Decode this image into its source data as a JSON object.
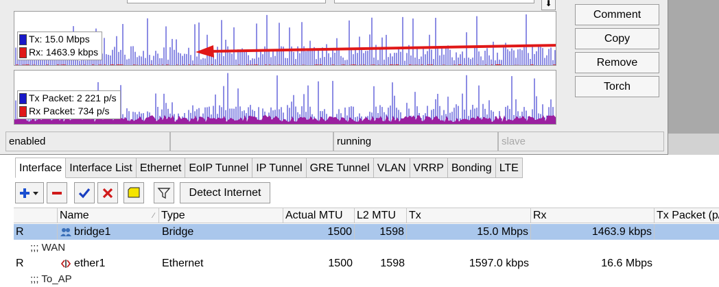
{
  "graphs": {
    "traffic": {
      "tx_label": "Tx:",
      "tx_value": "15.0 Mbps",
      "rx_label": "Rx:",
      "rx_value": "1463.9 kbps",
      "tx_color": "#1818c8",
      "rx_color": "#e01818"
    },
    "packets": {
      "tx_label": "Tx Packet:",
      "tx_value": "2 221 p/s",
      "rx_label": "Rx Packet:",
      "rx_value": "734 p/s",
      "tx_color": "#1818c8",
      "rx_color": "#9b1fa0"
    },
    "annotation_arrow_color": "#e01818"
  },
  "side_buttons": {
    "comment": "Comment",
    "copy": "Copy",
    "remove": "Remove",
    "torch": "Torch"
  },
  "status_bar": {
    "state": "enabled",
    "empty": "",
    "running": "running",
    "slave": "slave"
  },
  "tabs": [
    "Interface",
    "Interface List",
    "Ethernet",
    "EoIP Tunnel",
    "IP Tunnel",
    "GRE Tunnel",
    "VLAN",
    "VRRP",
    "Bonding",
    "LTE"
  ],
  "toolbar": {
    "detect_internet": "Detect Internet",
    "add_icon": "plus-icon",
    "remove_icon": "minus-icon",
    "enable_icon": "check-icon",
    "disable_icon": "x-icon",
    "comment_icon": "note-icon",
    "filter_icon": "filter-icon"
  },
  "table": {
    "columns": [
      "",
      "Name",
      "Type",
      "Actual MTU",
      "L2 MTU",
      "Tx",
      "Rx",
      "Tx Packet (p/"
    ],
    "rows": [
      {
        "flag": "R",
        "name": "bridge1",
        "type": "Bridge",
        "actual_mtu": "1500",
        "l2_mtu": "1598",
        "tx": "15.0 Mbps",
        "rx": "1463.9 kbps",
        "selected": true,
        "icon": "bridge-icon"
      },
      {
        "comment": ";;; WAN"
      },
      {
        "flag": "R",
        "name": "ether1",
        "type": "Ethernet",
        "actual_mtu": "1500",
        "l2_mtu": "1598",
        "tx": "1597.0 kbps",
        "rx": "16.6 Mbps",
        "selected": false,
        "icon": "ethernet-icon"
      },
      {
        "comment": ";;; To_AP"
      }
    ]
  }
}
